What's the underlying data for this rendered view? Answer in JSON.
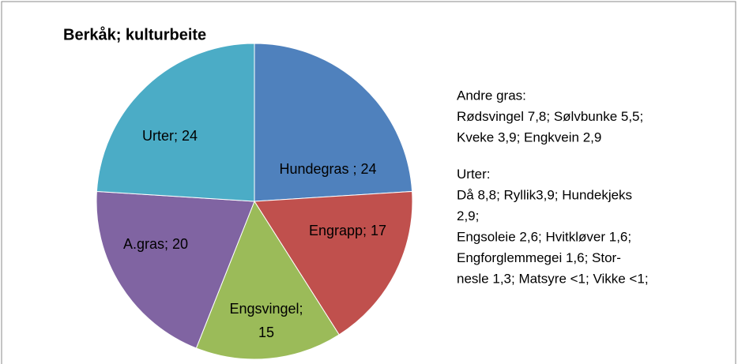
{
  "chart_data": {
    "type": "pie",
    "title": "Berkåk; kulturbeite",
    "values": [
      24,
      17,
      15,
      20,
      24
    ],
    "value_labels": [
      "Hundegras ; 24",
      "Engrapp; 17",
      "Engsvingel; 15",
      "A.gras; 20",
      "Urter; 24"
    ],
    "colors": [
      "#4f81bd",
      "#c0504d",
      "#9bbb59",
      "#8064a2",
      "#4bacc6"
    ],
    "annotations": [
      "Andre gras:",
      "Rødsvingel 7,8; Sølvbunke 5,5;",
      "Kveke 3,9; Engkvein 2,9",
      "Urter:",
      "Då 8,8; Ryllik3,9; Hundekjeks",
      "2,9;",
      "Engsoleie 2,6; Hvitkløver 1,6;",
      "Engforglemmegei 1,6; Stor-",
      "nesle 1,3; Matsyre <1; Vikke <1;"
    ]
  }
}
